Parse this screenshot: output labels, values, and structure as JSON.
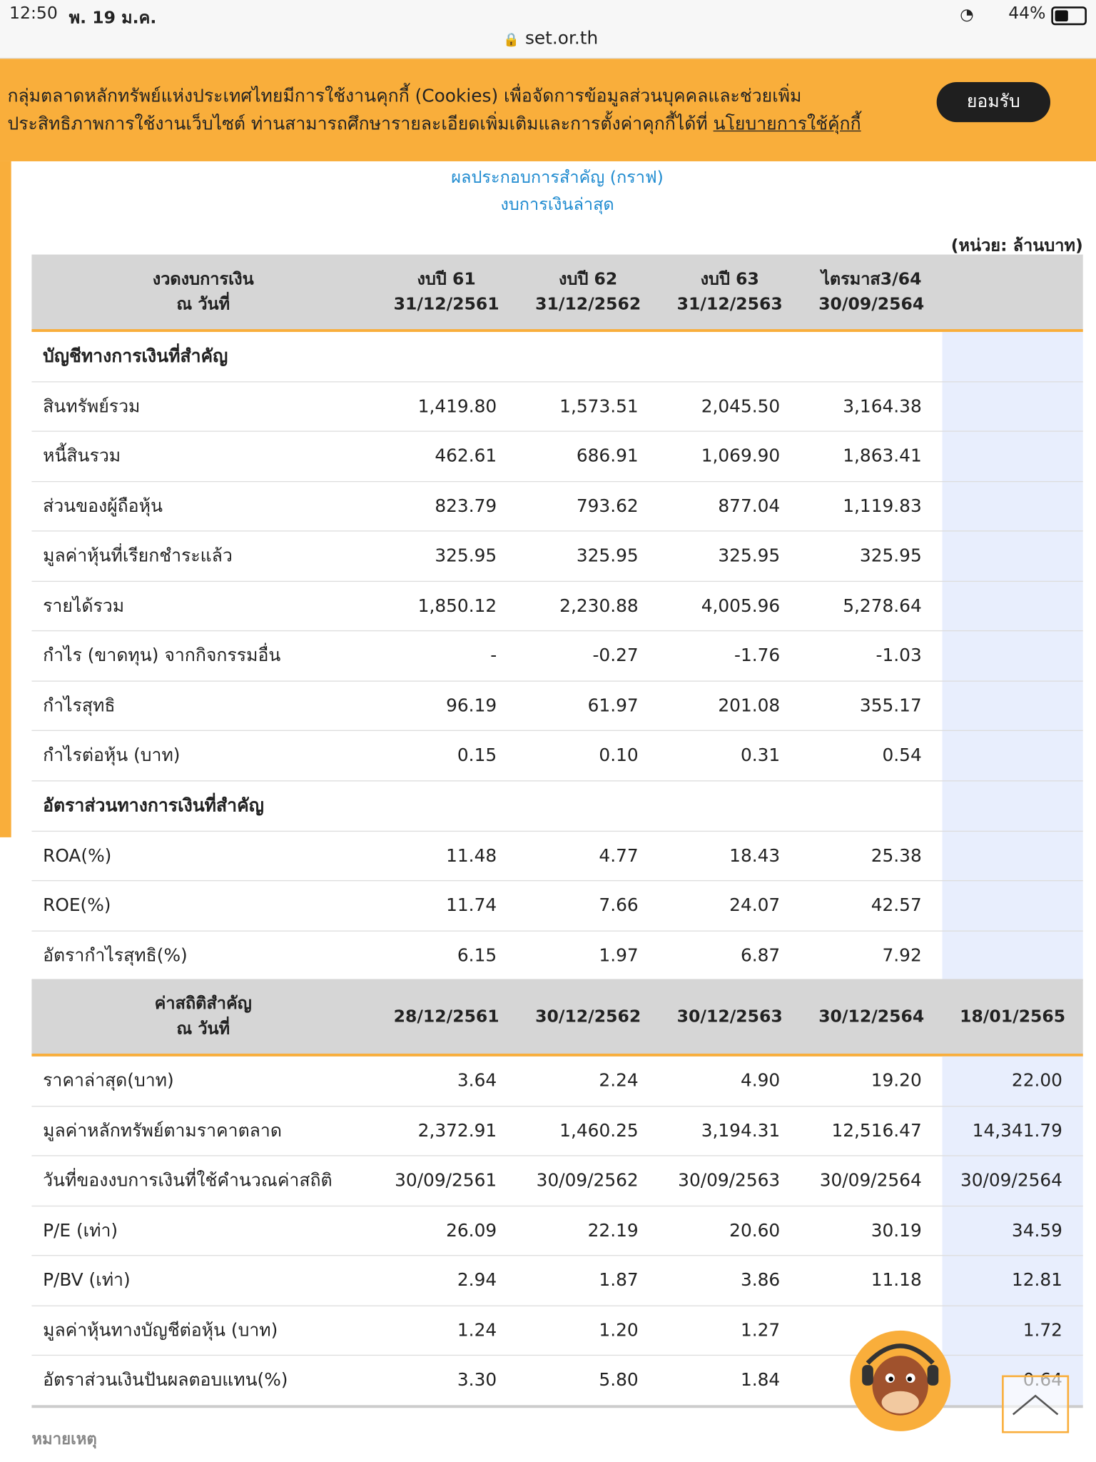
{
  "status": {
    "time": "12:50",
    "date": "พ. 19 ม.ค.",
    "battery": "44%"
  },
  "url": "set.or.th",
  "cookie": {
    "line1": "กลุ่มตลาดหลักทรัพย์แห่งประเทศไทยมีการใช้งานคุกกี้ (Cookies) เพื่อจัดการข้อมูลส่วนบุคคลและช่วยเพิ่ม",
    "line2": "ประสิทธิภาพการใช้งานเว็บไซต์ ท่านสามารถศึกษารายละเอียดเพิ่มเติมและการตั้งค่าคุกกี้ได้ที่",
    "link": "นโยบายการใช้คุ้กกี้",
    "button": "ยอมรับ"
  },
  "links": [
    "ผลประกอบการสำคัญ (กราฟ)",
    "งบการเงินล่าสุด"
  ],
  "unit": "(หน่วย: ล้านบาท)",
  "table1": {
    "header": [
      [
        "งวดงบการเงิน",
        "ณ วันที่"
      ],
      [
        "งบปี 61",
        "31/12/2561"
      ],
      [
        "งบปี 62",
        "31/12/2562"
      ],
      [
        "งบปี 63",
        "31/12/2563"
      ],
      [
        "ไตรมาส3/64",
        "30/09/2564"
      ]
    ],
    "rows": [
      {
        "label": "บัญชีทางการเงินที่สำคัญ",
        "section": true
      },
      {
        "label": "สินทรัพย์รวม",
        "values": [
          "1,419.80",
          "1,573.51",
          "2,045.50",
          "3,164.38"
        ]
      },
      {
        "label": "หนี้สินรวม",
        "values": [
          "462.61",
          "686.91",
          "1,069.90",
          "1,863.41"
        ]
      },
      {
        "label": "ส่วนของผู้ถือหุ้น",
        "values": [
          "823.79",
          "793.62",
          "877.04",
          "1,119.83"
        ]
      },
      {
        "label": "มูลค่าหุ้นที่เรียกชำระแล้ว",
        "values": [
          "325.95",
          "325.95",
          "325.95",
          "325.95"
        ]
      },
      {
        "label": "รายได้รวม",
        "values": [
          "1,850.12",
          "2,230.88",
          "4,005.96",
          "5,278.64"
        ]
      },
      {
        "label": "กำไร (ขาดทุน) จากกิจกรรมอื่น",
        "values": [
          "-",
          "-0.27",
          "-1.76",
          "-1.03"
        ]
      },
      {
        "label": "กำไรสุทธิ",
        "values": [
          "96.19",
          "61.97",
          "201.08",
          "355.17"
        ]
      },
      {
        "label": "กำไรต่อหุ้น (บาท)",
        "values": [
          "0.15",
          "0.10",
          "0.31",
          "0.54"
        ]
      },
      {
        "label": "อัตราส่วนทางการเงินที่สำคัญ",
        "section": true
      },
      {
        "label": "ROA(%)",
        "values": [
          "11.48",
          "4.77",
          "18.43",
          "25.38"
        ]
      },
      {
        "label": "ROE(%)",
        "values": [
          "11.74",
          "7.66",
          "24.07",
          "42.57"
        ]
      },
      {
        "label": "อัตรากำไรสุทธิ(%)",
        "values": [
          "6.15",
          "1.97",
          "6.87",
          "7.92"
        ]
      }
    ]
  },
  "table2": {
    "header": [
      [
        "ค่าสถิติสำคัญ",
        "ณ วันที่"
      ],
      [
        "28/12/2561"
      ],
      [
        "30/12/2562"
      ],
      [
        "30/12/2563"
      ],
      [
        "30/12/2564"
      ],
      [
        "18/01/2565"
      ]
    ],
    "rows": [
      {
        "label": "ราคาล่าสุด(บาท)",
        "values": [
          "3.64",
          "2.24",
          "4.90",
          "19.20",
          "22.00"
        ]
      },
      {
        "label": "มูลค่าหลักทรัพย์ตามราคาตลาด",
        "values": [
          "2,372.91",
          "1,460.25",
          "3,194.31",
          "12,516.47",
          "14,341.79"
        ]
      },
      {
        "label": "วันที่ของงบการเงินที่ใช้คำนวณค่าสถิติ",
        "values": [
          "30/09/2561",
          "30/09/2562",
          "30/09/2563",
          "30/09/2564",
          "30/09/2564"
        ]
      },
      {
        "label": "P/E (เท่า)",
        "values": [
          "26.09",
          "22.19",
          "20.60",
          "30.19",
          "34.59"
        ]
      },
      {
        "label": "P/BV (เท่า)",
        "values": [
          "2.94",
          "1.87",
          "3.86",
          "11.18",
          "12.81"
        ]
      },
      {
        "label": "มูลค่าหุ้นทางบัญชีต่อหุ้น (บาท)",
        "values": [
          "1.24",
          "1.20",
          "1.27",
          null,
          "1.72"
        ]
      },
      {
        "label": "อัตราส่วนเงินปันผลตอบแทน(%)",
        "values": [
          "3.30",
          "5.80",
          "1.84",
          null,
          "0.64"
        ]
      }
    ]
  },
  "note": "หมายเหตุ"
}
